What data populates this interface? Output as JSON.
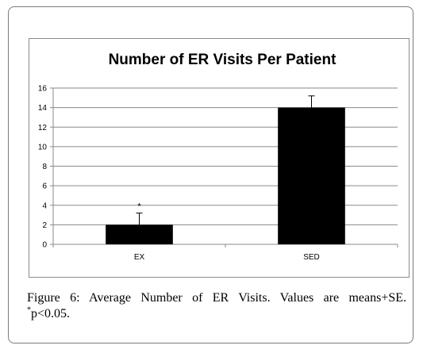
{
  "chart_data": {
    "type": "bar",
    "title": "Number of ER Visits Per Patient",
    "categories": [
      "EX",
      "SED"
    ],
    "values": [
      2,
      14
    ],
    "error_bars": [
      1.2,
      1.2
    ],
    "annotations": [
      {
        "category": "EX",
        "text": "*"
      }
    ],
    "ylim": [
      0,
      16
    ],
    "yticks": [
      "0",
      "2",
      "4",
      "6",
      "8",
      "10",
      "12",
      "14",
      "16"
    ],
    "grid": true,
    "bar_color": "#000000",
    "xlabel": "",
    "ylabel": ""
  },
  "caption": {
    "label": "Figure 6:",
    "text": "Average Number of ER Visits. Values are means+SE.",
    "footnote_mark": "*",
    "footnote_text": "p<0.05."
  }
}
